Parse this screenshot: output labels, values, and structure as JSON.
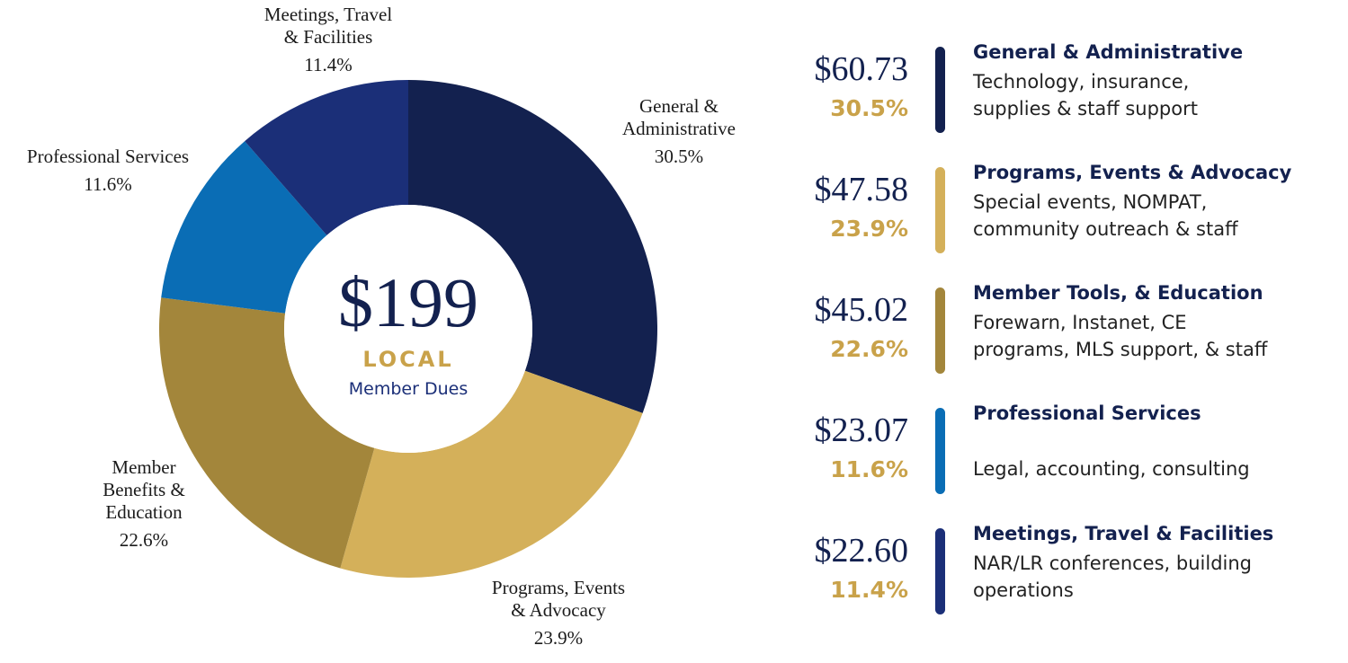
{
  "chart_data": {
    "type": "pie",
    "donut": true,
    "center": {
      "amount": "$199",
      "label": "LOCAL",
      "sublabel": "Member Dues"
    },
    "categories": [
      "General &\nAdministrative",
      "Programs, Events\n& Advocacy",
      "Member\nBenefits &\nEducation",
      "Professional Services",
      "Meetings, Travel\n& Facilities"
    ],
    "values": [
      30.5,
      23.9,
      22.6,
      11.6,
      11.4
    ],
    "value_labels": [
      "30.5%",
      "23.9%",
      "22.6%",
      "11.6%",
      "11.4%"
    ],
    "colors": [
      "#13214f",
      "#d4b05a",
      "#a3863b",
      "#0a6db5",
      "#1b2f78"
    ],
    "legend": [
      {
        "amount": "$60.73",
        "title": "General & Administrative",
        "description": "Technology, insurance,\nsupplies & staff support"
      },
      {
        "amount": "$47.58",
        "title": "Programs, Events & Advocacy",
        "description": "Special events, NOMPAT,\ncommunity outreach & staff"
      },
      {
        "amount": "$45.02",
        "title": "Member Tools, & Education",
        "description": "Forewarn, Instanet, CE\nprograms, MLS support, & staff"
      },
      {
        "amount": "$23.07",
        "title": "Professional Services",
        "description": "Legal, accounting, consulting"
      },
      {
        "amount": "$22.60",
        "title": "Meetings, Travel & Facilities",
        "description": "NAR/LR conferences, building\noperations"
      }
    ]
  }
}
